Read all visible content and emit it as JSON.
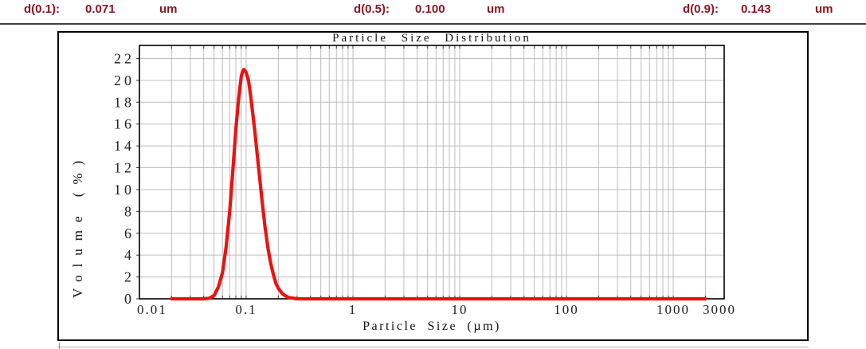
{
  "header": {
    "items": [
      {
        "label": "d(0.1):",
        "value": "0.071",
        "unit": "um"
      },
      {
        "label": "d(0.5):",
        "value": "0.100",
        "unit": "um"
      },
      {
        "label": "d(0.9):",
        "value": "0.143",
        "unit": "um"
      }
    ],
    "text_color": "#8a1626"
  },
  "colors": {
    "grid": "#bdbdbd",
    "axis": "#000000",
    "tick": "#3c3c3c",
    "rule": "#424242",
    "tick_text": "#222222"
  },
  "chart_data": {
    "type": "line",
    "title": "Particle Size Distribution",
    "xlabel": "Particle Size (µm)",
    "ylabel": "Volume (%)",
    "x_scale": "log",
    "xlim": [
      0.01,
      3000
    ],
    "ylim": [
      0,
      23.2
    ],
    "x_ticks": [
      0.01,
      0.1,
      1,
      10,
      100,
      1000,
      3000
    ],
    "x_tick_labels": [
      "0.01",
      "0.1",
      "1",
      "10",
      "100",
      "1000",
      "3000"
    ],
    "y_ticks": [
      0,
      2,
      4,
      6,
      8,
      10,
      12,
      14,
      16,
      18,
      20,
      22
    ],
    "grid": true,
    "legend": false,
    "series": [
      {
        "name": "Volume (%)",
        "color": "#ee1111",
        "points": [
          [
            0.02,
            0
          ],
          [
            0.03,
            0
          ],
          [
            0.04,
            0
          ],
          [
            0.045,
            0.05
          ],
          [
            0.05,
            0.3
          ],
          [
            0.055,
            1.1
          ],
          [
            0.06,
            2.4
          ],
          [
            0.065,
            4.8
          ],
          [
            0.07,
            8.0
          ],
          [
            0.075,
            11.8
          ],
          [
            0.08,
            15.5
          ],
          [
            0.085,
            18.4
          ],
          [
            0.09,
            20.4
          ],
          [
            0.0925,
            20.8
          ],
          [
            0.095,
            21.0
          ],
          [
            0.0975,
            20.9
          ],
          [
            0.1,
            20.7
          ],
          [
            0.105,
            20.0
          ],
          [
            0.11,
            18.6
          ],
          [
            0.12,
            15.5
          ],
          [
            0.13,
            12.2
          ],
          [
            0.14,
            9.2
          ],
          [
            0.15,
            6.6
          ],
          [
            0.16,
            4.6
          ],
          [
            0.17,
            3.2
          ],
          [
            0.18,
            2.2
          ],
          [
            0.19,
            1.4
          ],
          [
            0.2,
            0.95
          ],
          [
            0.22,
            0.42
          ],
          [
            0.25,
            0.12
          ],
          [
            0.3,
            0
          ],
          [
            0.5,
            0
          ],
          [
            1,
            0
          ],
          [
            5,
            0
          ],
          [
            10,
            0
          ],
          [
            50,
            0
          ],
          [
            100,
            0
          ],
          [
            500,
            0
          ],
          [
            1000,
            0
          ],
          [
            2000,
            0
          ]
        ]
      }
    ]
  }
}
